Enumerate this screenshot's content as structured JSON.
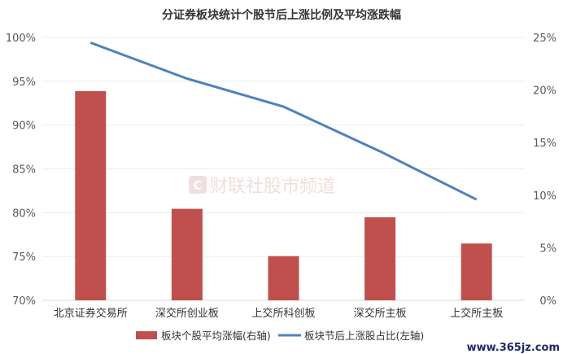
{
  "chart_data": {
    "type": "bar",
    "title": "分证券板块统计个股节后上涨比例及平均涨跌幅",
    "categories": [
      "北京证券交易所",
      "深交所创业板",
      "上交所科创板",
      "深交所主板",
      "上交所主板"
    ],
    "series": [
      {
        "name": "板块个股平均涨幅(右轴)",
        "type": "bar",
        "axis": "right",
        "color": "#c0504d",
        "values": [
          0.199,
          0.087,
          0.042,
          0.079,
          0.054
        ]
      },
      {
        "name": "板块节后上涨股占比(左轴)",
        "type": "line",
        "axis": "left",
        "color": "#4f81bd",
        "values": [
          0.994,
          0.953,
          0.921,
          0.87,
          0.815
        ]
      }
    ],
    "left_axis": {
      "ylim": [
        0.7,
        1.0
      ],
      "ticks": [
        "100%",
        "95%",
        "90%",
        "85%",
        "80%",
        "75%",
        "70%"
      ]
    },
    "right_axis": {
      "ylim": [
        0.0,
        0.25
      ],
      "ticks": [
        "25%",
        "20%",
        "15%",
        "10%",
        "5%",
        "0%"
      ]
    },
    "grid": true,
    "legend_position": "bottom"
  },
  "watermark": {
    "text": "财联社股市频道",
    "icon": "c-logo-icon"
  },
  "site_url": "www.365jz.com"
}
